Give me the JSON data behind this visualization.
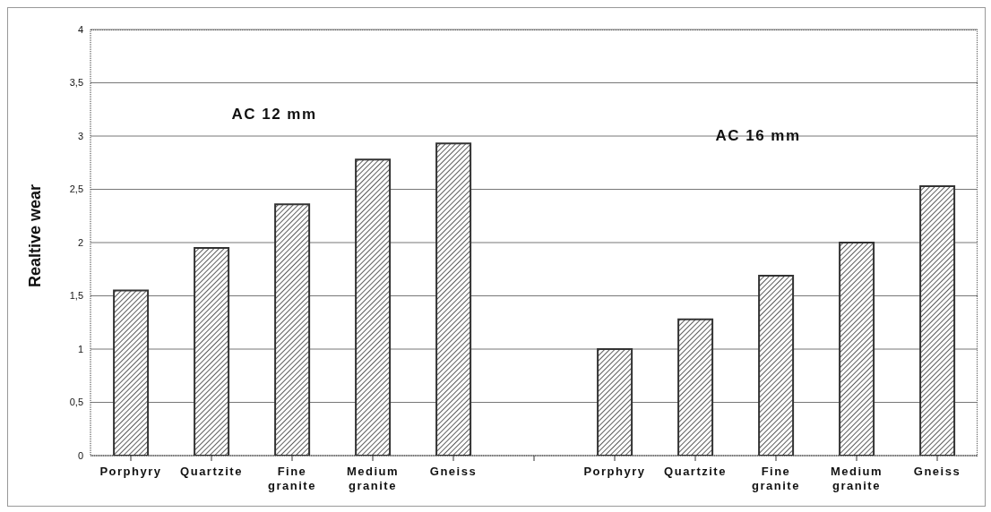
{
  "chart_data": {
    "type": "bar",
    "ylabel": "Realtive wear",
    "categories": [
      "Porphyry",
      "Quartzite",
      "Fine granite",
      "Medium granite",
      "Gneiss",
      null,
      "Porphyry",
      "Quartzite",
      "Fine granite",
      "Medium granite",
      "Gneiss"
    ],
    "values": [
      1.55,
      1.95,
      2.36,
      2.78,
      2.93,
      null,
      1.0,
      1.28,
      1.69,
      2.0,
      2.53
    ],
    "color": "#333333",
    "ylim": [
      0,
      4
    ],
    "yticks": [
      0,
      {
        "value": 0.5,
        "label": "0,5"
      },
      1,
      {
        "value": 1.5,
        "label": "1,5"
      },
      2,
      {
        "value": 2.5,
        "label": "2,5"
      },
      3,
      {
        "value": 3.5,
        "label": "3,5"
      },
      4
    ],
    "grid": "y",
    "annotations": [
      "AC 12 mm",
      "AC 16 mm"
    ]
  }
}
